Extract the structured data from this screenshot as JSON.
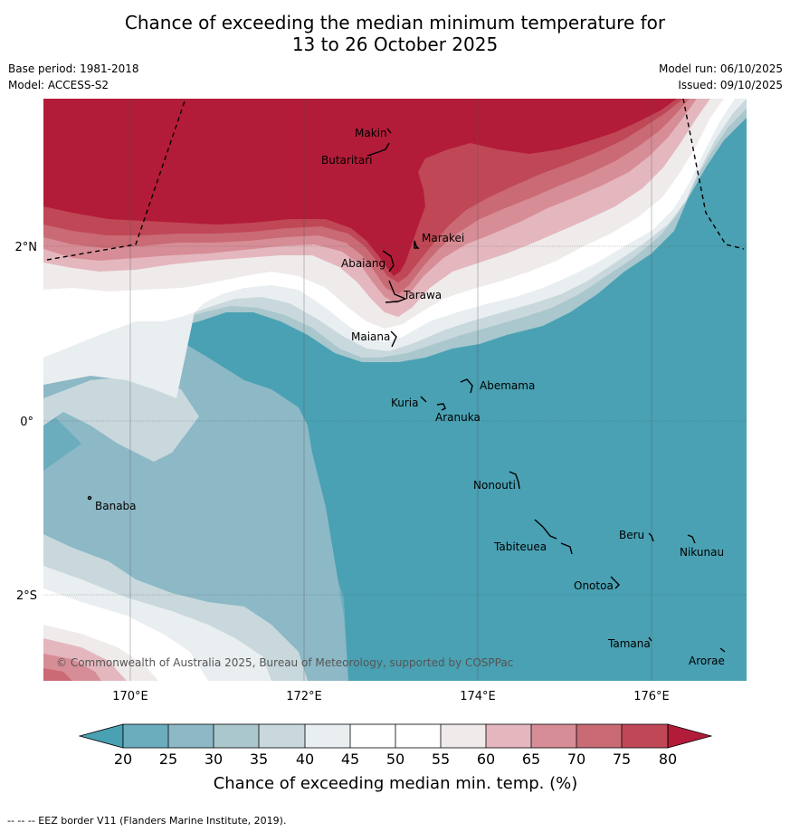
{
  "title": {
    "line1": "Chance of exceeding the median minimum temperature for",
    "line2": "13 to 26 October 2025"
  },
  "meta": {
    "base_period": "Base period: 1981-2018",
    "model": "Model: ACCESS-S2",
    "model_run": "Model run: 06/10/2025",
    "issued": "Issued: 09/10/2025"
  },
  "map": {
    "lon_ticks": [
      "170°E",
      "172°E",
      "174°E",
      "176°E"
    ],
    "lat_ticks": [
      "2°N",
      "0°",
      "2°S"
    ],
    "copyright": "© Commonwealth of Australia 2025, Bureau of Meteorology, supported by COSPPac",
    "places": {
      "makin": "Makin",
      "butaritari": "Butaritari",
      "marakei": "Marakei",
      "abaiang": "Abaiang",
      "tarawa": "Tarawa",
      "maiana": "Maiana",
      "abemama": "Abemama",
      "kuria": "Kuria",
      "aranuka": "Aranuka",
      "banaba": "Banaba",
      "nonouti": "Nonouti",
      "beru": "Beru",
      "nikunau": "Nikunau",
      "tabiteuea": "Tabiteuea",
      "onotoa": "Onotoa",
      "tamana": "Tamana",
      "arorae": "Arorae"
    }
  },
  "colorbar": {
    "title": "Chance of exceeding median min. temp. (%)",
    "ticks": [
      "20",
      "25",
      "30",
      "35",
      "40",
      "45",
      "50",
      "55",
      "60",
      "65",
      "70",
      "75",
      "80"
    ],
    "colors": {
      "below20": "#49a1b3",
      "c20_25": "#6badbd",
      "c25_30": "#8db8c6",
      "c30_35": "#a9c7cd",
      "c35_40": "#c8d8dc",
      "c40_45": "#e9eef0",
      "c45_50": "#ffffff",
      "c50_55": "#ffffff",
      "c55_60": "#efebeb",
      "c60_65": "#e4b7bf",
      "c65_70": "#d78d96",
      "c70_75": "#c96a74",
      "c75_80": "#c04756",
      "above80": "#b21c38"
    }
  },
  "footer": "--  --  -- EEZ border V11 (Flanders Marine Institute, 2019)."
}
